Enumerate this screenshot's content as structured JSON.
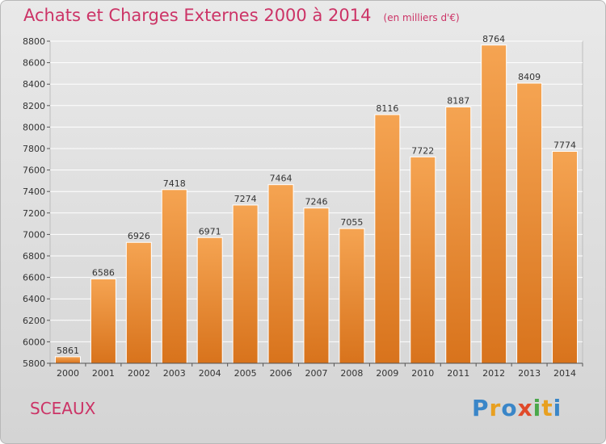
{
  "title": "Achats et Charges Externes 2000 à 2014",
  "subtitle": "(en milliers d'€)",
  "city": "SCEAUX",
  "logo": {
    "letters": [
      "P",
      "r",
      "o",
      "x",
      "i",
      "t",
      "i"
    ],
    "colors": [
      "#3a86c8",
      "#e8a020",
      "#3a86c8",
      "#e04a2a",
      "#4aa84a",
      "#e8a020",
      "#3a86c8"
    ]
  },
  "colors": {
    "bar_top": "#f5a452",
    "bar_bottom": "#d8731c",
    "text_accent": "#cc3366"
  },
  "chart_data": {
    "type": "bar",
    "categories": [
      "2000",
      "2001",
      "2002",
      "2003",
      "2004",
      "2005",
      "2006",
      "2007",
      "2008",
      "2009",
      "2010",
      "2011",
      "2012",
      "2013",
      "2014"
    ],
    "values": [
      5861,
      6586,
      6926,
      7418,
      6971,
      7274,
      7464,
      7246,
      7055,
      8116,
      7722,
      8187,
      8764,
      8409,
      7774
    ],
    "data_labels": [
      "5861",
      "6586",
      "6926",
      "7418",
      "6971",
      "7274",
      "7464",
      "7246",
      "7055",
      "8116",
      "7722",
      "8187",
      "8764",
      "8409",
      "7774"
    ],
    "yticks": [
      "5800",
      "6000",
      "6200",
      "6400",
      "6600",
      "6800",
      "7000",
      "7200",
      "7400",
      "7600",
      "7800",
      "8000",
      "8200",
      "8400",
      "8600",
      "8800"
    ],
    "ylim": [
      5800,
      8800
    ],
    "grid": true
  }
}
